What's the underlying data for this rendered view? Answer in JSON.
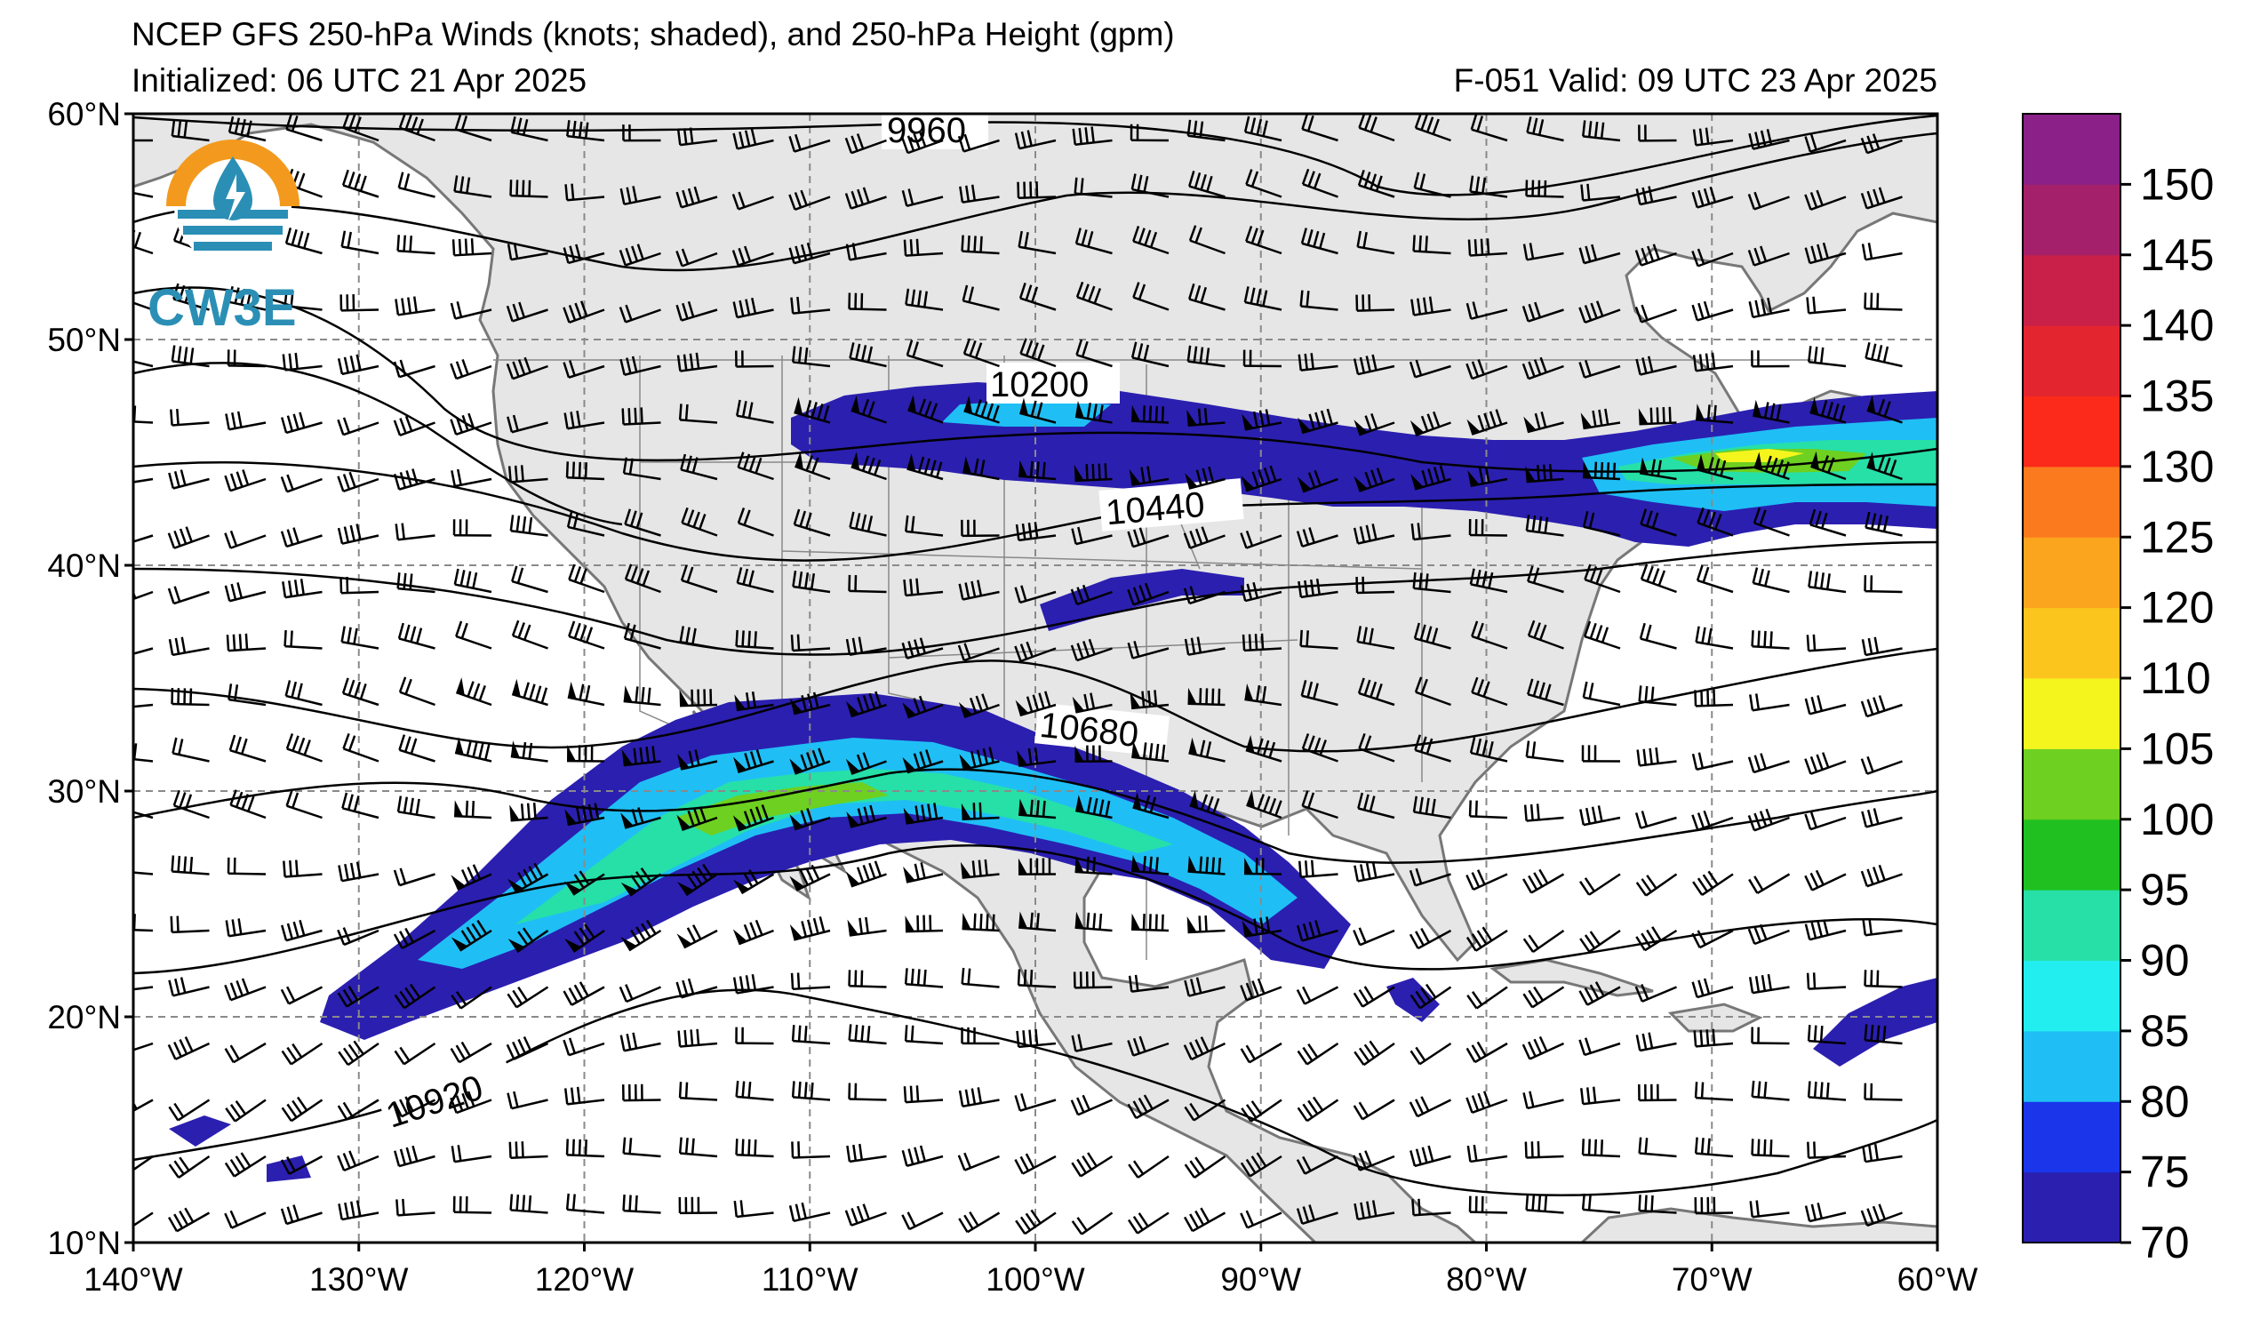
{
  "header": {
    "title": "NCEP GFS 250-hPa Winds (knots; shaded), and 250-hPa Height (gpm)",
    "initialized": "Initialized: 06 UTC 21 Apr 2025",
    "valid": "F-051  Valid: 09 UTC 23 Apr 2025"
  },
  "logo": {
    "text": "CW3E"
  },
  "map": {
    "lon_range": [
      -140,
      -60
    ],
    "lat_range": [
      10,
      60
    ],
    "lon_ticks": [
      "140°W",
      "130°W",
      "120°W",
      "110°W",
      "100°W",
      "90°W",
      "80°W",
      "70°W",
      "60°W"
    ],
    "lat_ticks": [
      "60°N",
      "50°N",
      "40°N",
      "30°N",
      "20°N",
      "10°N"
    ],
    "land_color": "#e6e6e6",
    "gridlines": "dashed"
  },
  "contours": {
    "labels": [
      "9960",
      "10200",
      "10440",
      "10680",
      "10920"
    ]
  },
  "colorbar": {
    "ticks": [
      "150",
      "145",
      "140",
      "135",
      "130",
      "125",
      "120",
      "110",
      "105",
      "100",
      "95",
      "90",
      "85",
      "80",
      "75",
      "70"
    ],
    "colors": [
      "#2b1fb0",
      "#1a35ea",
      "#1fbff5",
      "#22eef0",
      "#26e0a8",
      "#20c020",
      "#6ed020",
      "#f5f51e",
      "#fbc51e",
      "#fba51e",
      "#fb7a1e",
      "#fb2a1a",
      "#e32530",
      "#c82048",
      "#a5206a",
      "#8a2088"
    ]
  },
  "chart_data": {
    "type": "map",
    "title": "NCEP GFS 250-hPa Winds (knots; shaded), and 250-hPa Height (gpm)",
    "height_contours_gpm": [
      9960,
      10200,
      10440,
      10680,
      10920
    ],
    "colorbar_range_knots": [
      70,
      155
    ],
    "colorbar_interval_knots": 5,
    "jet_streaks": [
      {
        "region": "subtropical jet, Baja California to Gulf of Mexico",
        "max_knots_approx": 100
      },
      {
        "region": "northern jet, Great Lakes to Atlantic",
        "max_knots_approx": 105
      }
    ]
  }
}
